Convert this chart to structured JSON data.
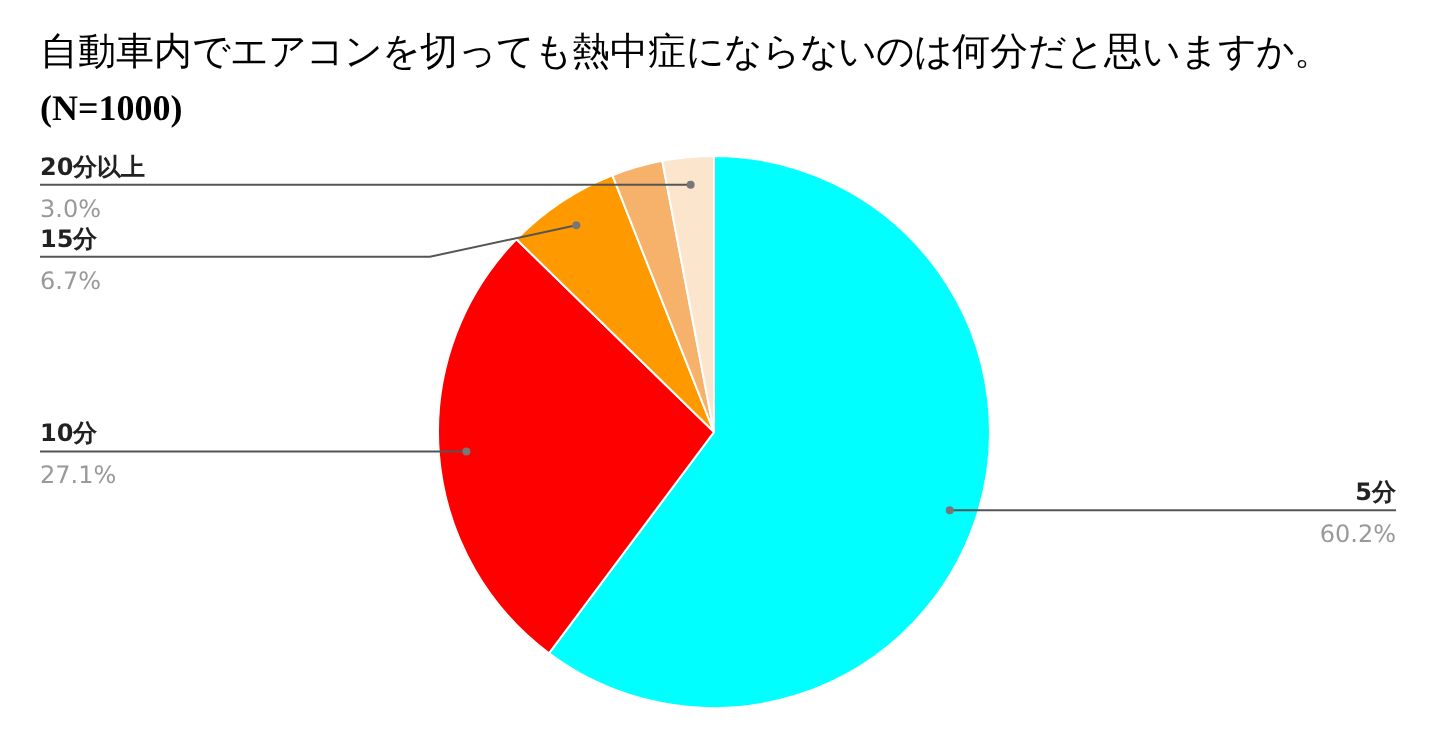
{
  "chart_data": {
    "type": "pie",
    "title": "自動車内でエアコンを切っても熱中症にならないのは何分だと思いますか。",
    "subtitle": "(N=1000)",
    "categories": [
      "5分",
      "10分",
      "15分",
      null,
      "20分以上"
    ],
    "values": [
      60.2,
      27.1,
      6.7,
      3.0,
      3.0
    ],
    "value_labels": [
      "60.2%",
      "27.1%",
      "6.7%",
      null,
      "3.0%"
    ],
    "colors": [
      "#00ffff",
      "#ff0000",
      "#ff9900",
      "#f6b26b",
      "#fce5cd"
    ]
  }
}
